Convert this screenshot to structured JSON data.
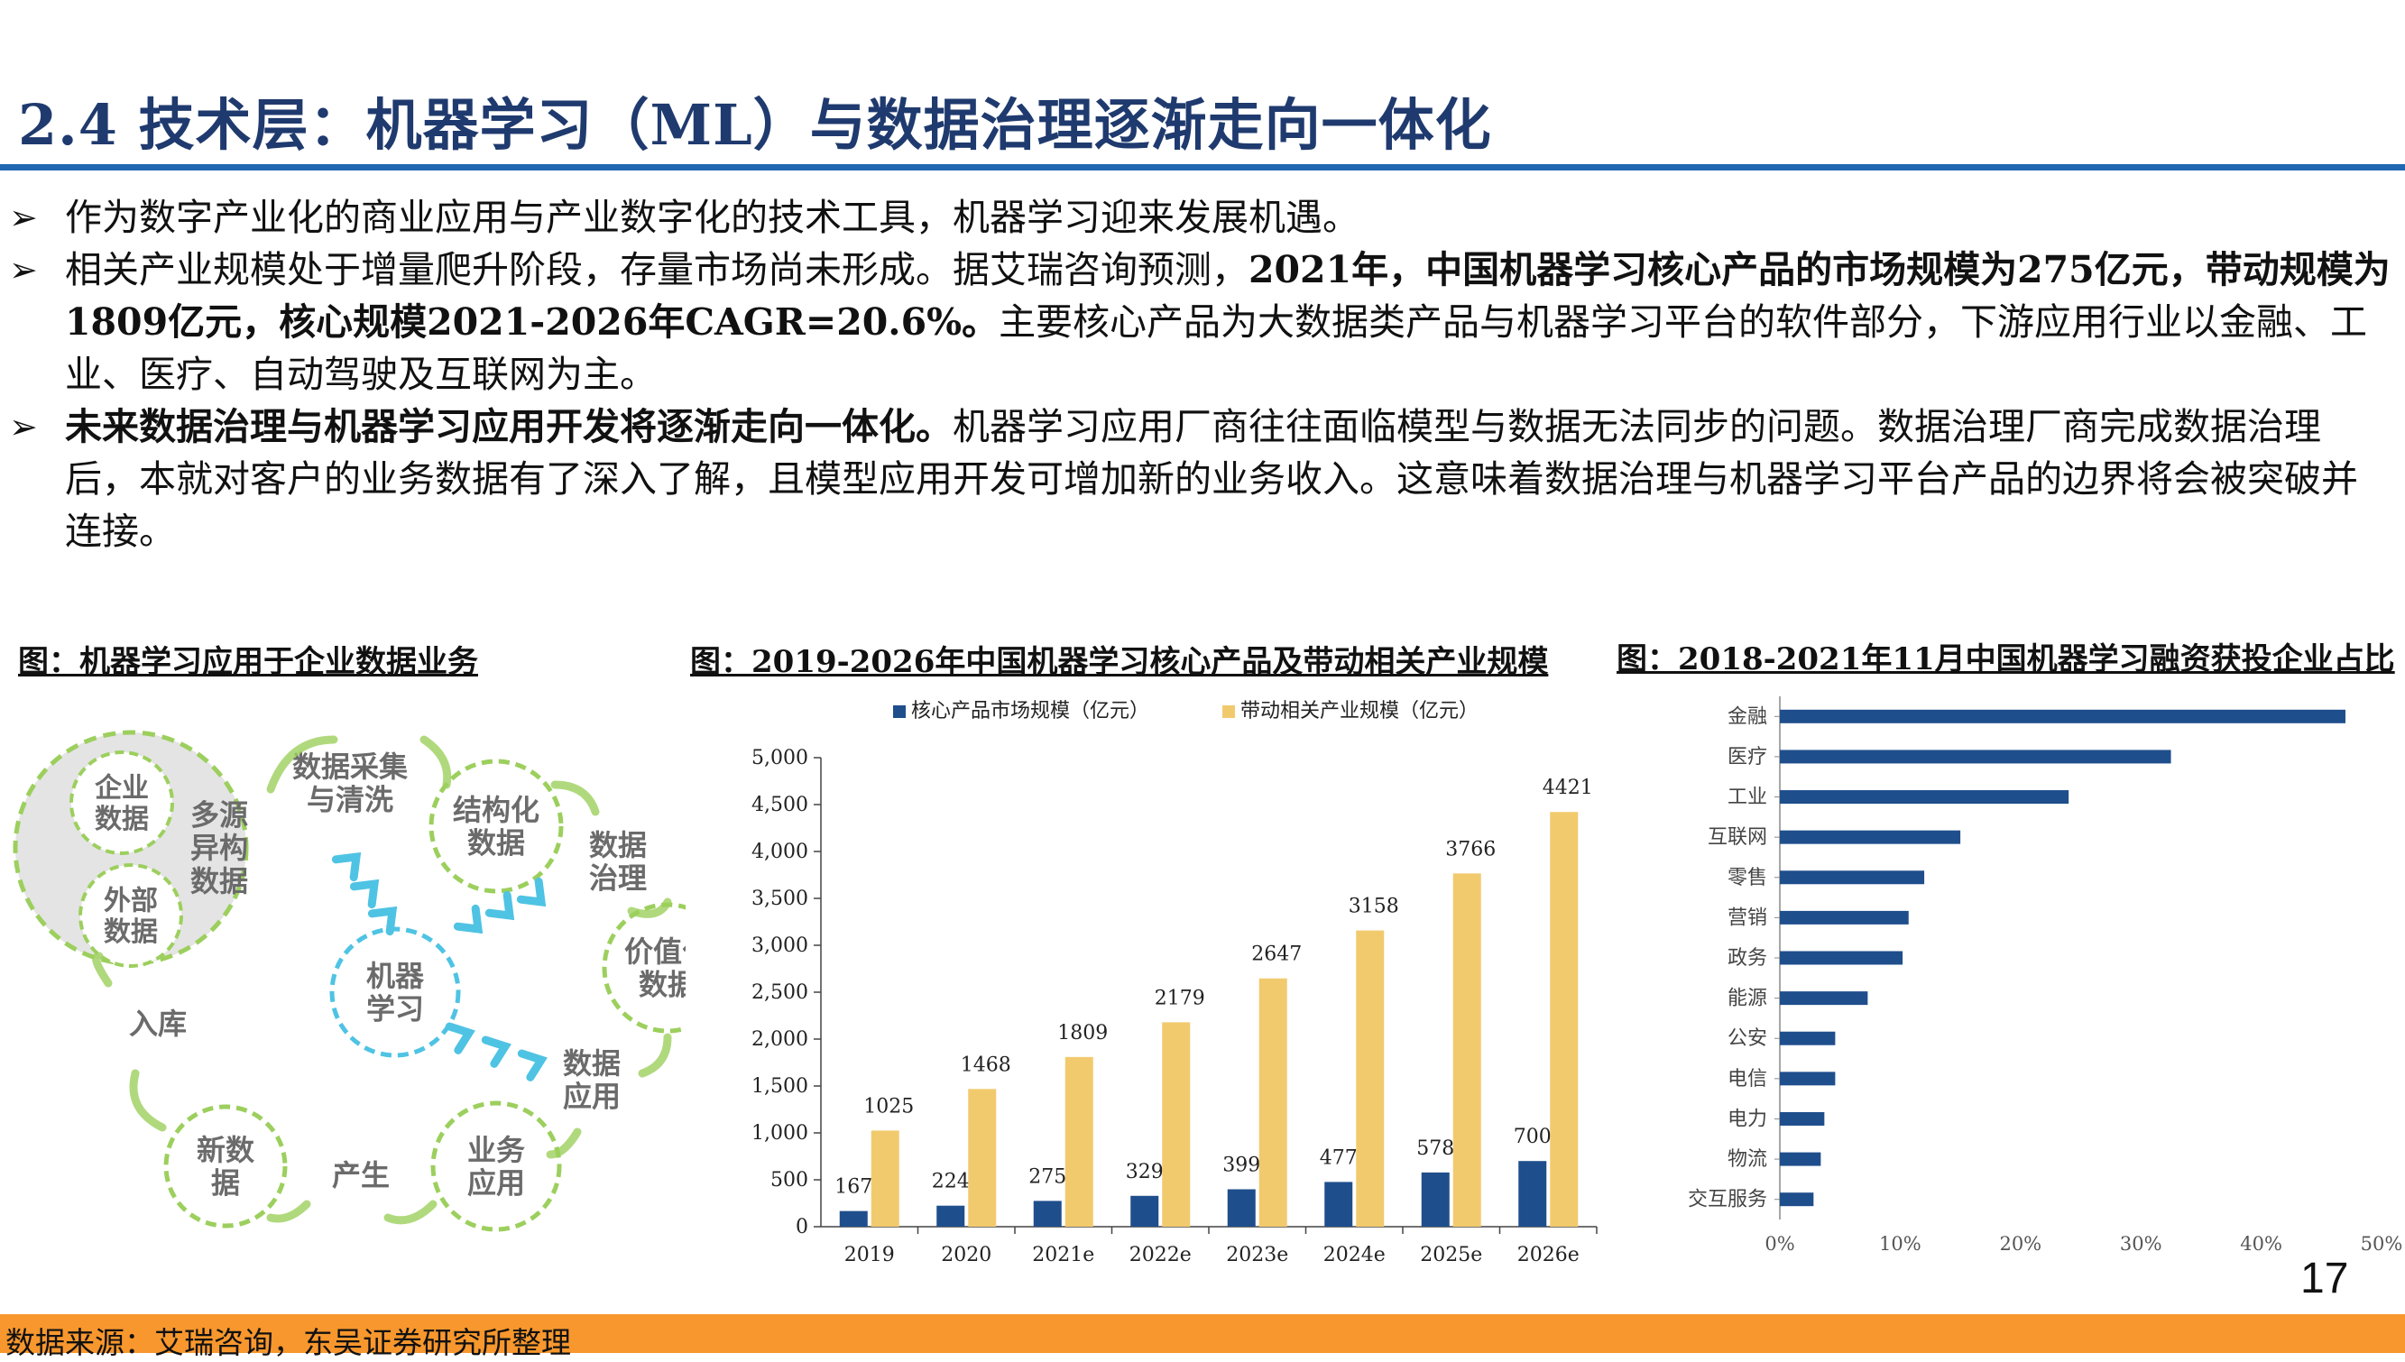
{
  "title": "2.4 技术层：机器学习（ML）与数据治理逐渐走向一体化",
  "bullets": [
    {
      "plain1": "作为数字产业化的商业应用与产业数字化的技术工具，机器学习迎来发展机遇。",
      "bold": "",
      "plain2": ""
    },
    {
      "plain1": "相关产业规模处于增量爬升阶段，存量市场尚未形成。据艾瑞咨询预测，",
      "bold": "2021年，中国机器学习核心产品的市场规模为275亿元，带动规模为1809亿元，核心规模2021-2026年CAGR=20.6%。",
      "plain2": "主要核心产品为大数据类产品与机器学习平台的软件部分，下游应用行业以金融、工业、医疗、自动驾驶及互联网为主。"
    },
    {
      "plain1": "",
      "bold": "未来数据治理与机器学习应用开发将逐渐走向一体化。",
      "plain2": "机器学习应用厂商往往面临模型与数据无法同步的问题。数据治理厂商完成数据治理后，本就对客户的业务数据有了深入了解，且模型应用开发可增加新的业务收入。这意味着数据治理与机器学习平台产品的边界将会被突破并连接。"
    }
  ],
  "diagram": {
    "caption": "图：机器学习应用于企业数据业务",
    "center": "机器\n学习",
    "big_circle": [
      "企业\n数据",
      "外部\n数据",
      "多源\n异构\n数据"
    ],
    "nodes": [
      "数据采集\n与清洗",
      "结构化\n数据",
      "数据\n治理",
      "价值化\n数据",
      "数据\n应用",
      "业务\n应用",
      "产生",
      "新数\n据",
      "入库"
    ]
  },
  "chart_data": [
    {
      "type": "bar",
      "title": "图：2019-2026年中国机器学习核心产品及带动相关产业规模",
      "categories": [
        "2019",
        "2020",
        "2021e",
        "2022e",
        "2023e",
        "2024e",
        "2025e",
        "2026e"
      ],
      "series": [
        {
          "name": "核心产品市场规模（亿元）",
          "values": [
            167,
            224,
            275,
            329,
            399,
            477,
            578,
            700
          ],
          "color": "#1f4e8c"
        },
        {
          "name": "带动相关产业规模（亿元）",
          "values": [
            1025,
            1468,
            1809,
            2179,
            2647,
            3158,
            3766,
            4421
          ],
          "color": "#f2ca6e"
        }
      ],
      "ylim": [
        0,
        5000
      ],
      "yticks": [
        "0",
        "500",
        "1,000",
        "1,500",
        "2,000",
        "2,500",
        "3,000",
        "3,500",
        "4,000",
        "4,500",
        "5,000"
      ],
      "legend": "top"
    },
    {
      "type": "bar",
      "orientation": "horizontal",
      "title": "图：2018-2021年11月中国机器学习融资获投企业占比",
      "categories": [
        "金融",
        "医疗",
        "工业",
        "互联网",
        "零售",
        "营销",
        "政务",
        "能源",
        "公安",
        "电信",
        "电力",
        "物流",
        "交互服务"
      ],
      "values": [
        0.47,
        0.325,
        0.24,
        0.15,
        0.12,
        0.107,
        0.102,
        0.073,
        0.046,
        0.046,
        0.037,
        0.034,
        0.028
      ],
      "color": "#1f4e8c",
      "xlim": [
        0,
        0.5
      ],
      "xticks": [
        "0%",
        "10%",
        "20%",
        "30%",
        "40%",
        "50%"
      ]
    }
  ],
  "page_number": "17",
  "footer": "数据来源：艾瑞咨询，东吴证券研究所整理",
  "colors": {
    "title": "#1f3a6e",
    "rule": "#2167b1",
    "footer_bar": "#f7972d",
    "core_bar": "#1f4e8c",
    "related_bar": "#f2ca6e",
    "diagram_green": "#9ccf5d",
    "diagram_blue": "#4fc3e3"
  }
}
